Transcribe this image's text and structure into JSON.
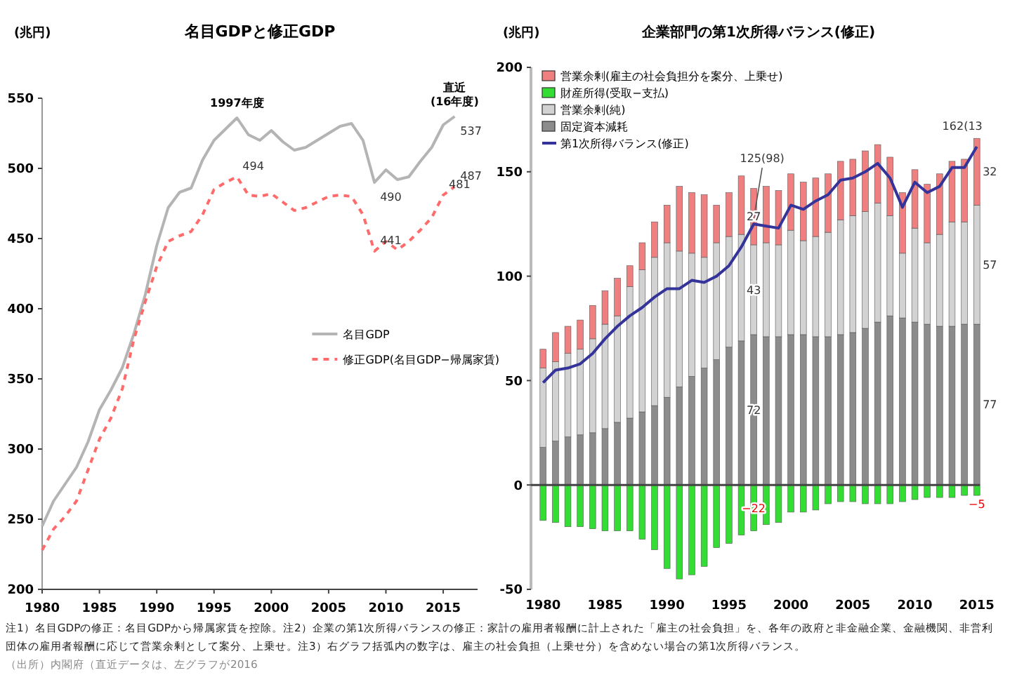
{
  "chart_data": [
    {
      "type": "line",
      "title": "名目GDPと修正GDP",
      "ylabel": "(兆円)",
      "x": [
        1980,
        1981,
        1982,
        1983,
        1984,
        1985,
        1986,
        1987,
        1988,
        1989,
        1990,
        1991,
        1992,
        1993,
        1994,
        1995,
        1996,
        1997,
        1998,
        1999,
        2000,
        2001,
        2002,
        2003,
        2004,
        2005,
        2006,
        2007,
        2008,
        2009,
        2010,
        2011,
        2012,
        2013,
        2014,
        2015,
        2016
      ],
      "xlim": [
        1980,
        2018
      ],
      "xticks": [
        1980,
        1985,
        1990,
        1995,
        2000,
        2005,
        2010,
        2015
      ],
      "ylim": [
        200,
        550
      ],
      "yticks": [
        200,
        250,
        300,
        350,
        400,
        450,
        500,
        550
      ],
      "grid": false,
      "legend": "right",
      "annotations": [
        {
          "text": "1997年度",
          "x": 1997,
          "y": 536
        },
        {
          "text": "直近\n(16年度)",
          "x": 2016,
          "y": 537
        }
      ],
      "series": [
        {
          "name": "名目GDP",
          "color": "#b4b4b4",
          "line_style": "solid",
          "values": [
            245,
            263,
            275,
            287,
            305,
            328,
            342,
            358,
            382,
            410,
            445,
            472,
            483,
            486,
            506,
            520,
            528,
            536,
            524,
            520,
            527,
            519,
            513,
            515,
            520,
            525,
            530,
            532,
            520,
            490,
            499,
            492,
            494,
            505,
            515,
            531,
            537
          ],
          "value_labels": [
            null,
            null,
            null,
            null,
            null,
            null,
            null,
            null,
            null,
            null,
            null,
            null,
            null,
            null,
            null,
            null,
            null,
            null,
            null,
            null,
            null,
            null,
            null,
            null,
            null,
            null,
            null,
            null,
            null,
            "490",
            null,
            null,
            null,
            null,
            null,
            null,
            "537"
          ]
        },
        {
          "name": "修正GDP(名目GDP−帰属家賃)",
          "color": "#ff6b6b",
          "line_style": "dashed",
          "values": [
            228,
            243,
            252,
            263,
            285,
            307,
            322,
            343,
            378,
            405,
            430,
            448,
            452,
            455,
            467,
            485,
            490,
            494,
            481,
            480,
            482,
            476,
            470,
            472,
            476,
            480,
            481,
            480,
            467,
            441,
            448,
            442,
            448,
            456,
            465,
            481,
            487
          ],
          "value_labels": [
            null,
            null,
            null,
            null,
            null,
            null,
            null,
            null,
            null,
            null,
            null,
            null,
            null,
            null,
            null,
            null,
            null,
            "494",
            null,
            null,
            null,
            null,
            null,
            null,
            null,
            null,
            null,
            null,
            null,
            "441",
            null,
            null,
            null,
            null,
            null,
            "481",
            "487"
          ]
        }
      ]
    },
    {
      "type": "bar",
      "title": "企業部門の第1次所得バランス(修正)",
      "ylabel": "(兆円)",
      "stacked": true,
      "categories": [
        "1980",
        null,
        null,
        null,
        null,
        "1985",
        null,
        null,
        null,
        null,
        "1990",
        null,
        null,
        null,
        null,
        "1995",
        null,
        null,
        null,
        null,
        "2000",
        null,
        null,
        null,
        null,
        "2005",
        null,
        null,
        null,
        null,
        "2010",
        null,
        null,
        null,
        null,
        "2015"
      ],
      "ylim": [
        -50,
        200
      ],
      "yticks": [
        -50,
        0,
        50,
        100,
        150,
        200
      ],
      "grid": false,
      "legend": "top left",
      "ref_lines": [
        {
          "axis": "y",
          "value": 0,
          "color": "#444444"
        }
      ],
      "series": [
        {
          "name": "固定資本減耗",
          "color": "#8c8c8c",
          "values": [
            18,
            21,
            23,
            24,
            25,
            27,
            30,
            32,
            35,
            38,
            42,
            47,
            52,
            56,
            60,
            66,
            69,
            72,
            71,
            71,
            72,
            72,
            71,
            71,
            72,
            73,
            75,
            78,
            81,
            80,
            78,
            77,
            76,
            76,
            77,
            77
          ],
          "value_labels": [
            null,
            null,
            null,
            null,
            null,
            null,
            null,
            null,
            null,
            null,
            null,
            null,
            null,
            null,
            null,
            null,
            null,
            "72",
            null,
            null,
            null,
            null,
            null,
            null,
            null,
            null,
            null,
            null,
            null,
            null,
            null,
            null,
            null,
            null,
            null,
            "77"
          ]
        },
        {
          "name": "営業余剰(純)",
          "color": "#d2d2d2",
          "values": [
            38,
            38,
            40,
            41,
            45,
            50,
            51,
            63,
            68,
            71,
            74,
            65,
            59,
            53,
            56,
            53,
            51,
            43,
            45,
            44,
            50,
            45,
            48,
            50,
            55,
            56,
            56,
            57,
            48,
            31,
            45,
            39,
            44,
            50,
            49,
            57
          ],
          "value_labels": [
            null,
            null,
            null,
            null,
            null,
            null,
            null,
            null,
            null,
            null,
            null,
            null,
            null,
            null,
            null,
            null,
            null,
            "43",
            null,
            null,
            null,
            null,
            null,
            null,
            null,
            null,
            null,
            null,
            null,
            null,
            null,
            null,
            null,
            null,
            null,
            "57"
          ]
        },
        {
          "name": "財産所得(受取−支払)",
          "color": "#33dd33",
          "values": [
            -17,
            -18,
            -20,
            -20,
            -21,
            -22,
            -22,
            -22,
            -26,
            -31,
            -40,
            -45,
            -43,
            -39,
            -30,
            -28,
            -24,
            -22,
            -19,
            -18,
            -13,
            -13,
            -12,
            -9,
            -8,
            -8,
            -9,
            -9,
            -9,
            -8,
            -7,
            -6,
            -6,
            -6,
            -5,
            -5
          ],
          "value_labels": [
            null,
            null,
            null,
            null,
            null,
            null,
            null,
            null,
            null,
            null,
            null,
            null,
            null,
            null,
            null,
            null,
            null,
            "−22",
            null,
            null,
            null,
            null,
            null,
            null,
            null,
            null,
            null,
            null,
            null,
            null,
            null,
            null,
            null,
            null,
            null,
            "−5"
          ]
        },
        {
          "name": "営業余剰(雇主の社会負担分を案分、上乗せ)",
          "color": "#f08080",
          "values": [
            9,
            14,
            13,
            14,
            16,
            16,
            18,
            10,
            13,
            17,
            18,
            31,
            29,
            30,
            18,
            21,
            28,
            27,
            27,
            26,
            27,
            28,
            28,
            28,
            28,
            27,
            29,
            28,
            28,
            29,
            28,
            28,
            29,
            29,
            30,
            32
          ],
          "value_labels": [
            null,
            null,
            null,
            null,
            null,
            null,
            null,
            null,
            null,
            null,
            null,
            null,
            null,
            null,
            null,
            null,
            null,
            "27",
            null,
            null,
            null,
            null,
            null,
            null,
            null,
            null,
            null,
            null,
            null,
            null,
            null,
            null,
            null,
            null,
            null,
            "32"
          ]
        },
        {
          "name": "第1次所得バランス(修正)",
          "type": "line",
          "color": "#333399",
          "values": [
            49,
            55,
            56,
            58,
            63,
            70,
            76,
            81,
            85,
            90,
            94,
            94,
            98,
            97,
            100,
            105,
            114,
            125,
            124,
            123,
            134,
            132,
            136,
            139,
            146,
            147,
            150,
            154,
            147,
            133,
            145,
            140,
            143,
            152,
            152,
            162
          ],
          "value_labels": [
            null,
            null,
            null,
            null,
            null,
            null,
            null,
            null,
            null,
            null,
            null,
            null,
            null,
            null,
            null,
            null,
            null,
            "125(98)",
            null,
            null,
            null,
            null,
            null,
            null,
            null,
            null,
            null,
            null,
            null,
            null,
            null,
            null,
            null,
            null,
            null,
            "162(13"
          ]
        }
      ],
      "annotations": [
        "注1）名目GDPの修正：名目GDPから帰属家賃を控除。注2）企業の第1次所得バランスの修正：家計の雇用者報酬に計上された「雇主の社会負担」を、各年の政府と非金融企業、金融機関、非営利",
        "団体の雇用者報酬に応じて営業余剰として案分、上乗せ。注3）右グラフ括弧内の数字は、雇主の社会負担（上乗せ分）を含めない場合の第1次所得バランス。",
        "（出所）内閣府（直近データは、左グラフが2016"
      ]
    }
  ]
}
